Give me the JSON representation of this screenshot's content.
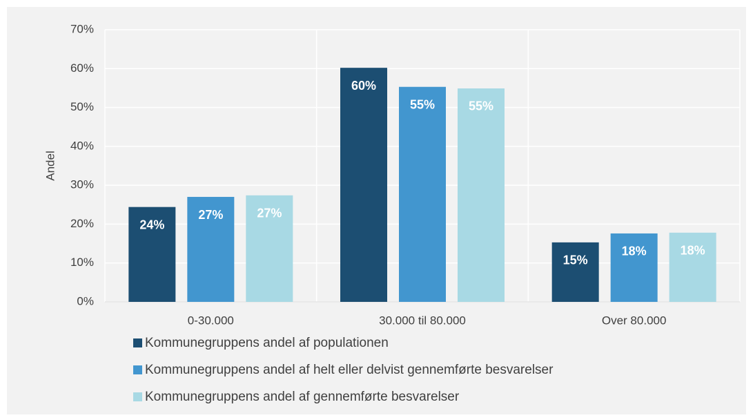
{
  "chart_data": {
    "type": "bar",
    "y_label": "Andel",
    "categories": [
      "0-30.000",
      "30.000 til 80.000",
      "Over 80.000"
    ],
    "series": [
      {
        "name": "Kommunegruppens andel af populationen",
        "color": "#1c4e72",
        "values": [
          24.4,
          60.2,
          15.3
        ],
        "value_labels": [
          "24%",
          "60%",
          "15%"
        ]
      },
      {
        "name": "Kommunegruppens andel af helt eller delvist gennemførte besvarelser",
        "color": "#4296cf",
        "values": [
          27.0,
          55.3,
          17.6
        ],
        "value_labels": [
          "27%",
          "55%",
          "18%"
        ]
      },
      {
        "name": "Kommunegruppens andel af gennemførte besvarelser",
        "color": "#a8d9e4",
        "values": [
          27.4,
          54.9,
          17.8
        ],
        "value_labels": [
          "27%",
          "55%",
          "18%"
        ]
      }
    ],
    "ylim": [
      0,
      70
    ],
    "yticks": [
      {
        "value": 0,
        "label": "0%"
      },
      {
        "value": 10,
        "label": "10%"
      },
      {
        "value": 20,
        "label": "20%"
      },
      {
        "value": 30,
        "label": "30%"
      },
      {
        "value": 40,
        "label": "40%"
      },
      {
        "value": 50,
        "label": "50%"
      },
      {
        "value": 60,
        "label": "60%"
      },
      {
        "value": 70,
        "label": "70%"
      }
    ],
    "grid": true,
    "legend": "bottom"
  }
}
